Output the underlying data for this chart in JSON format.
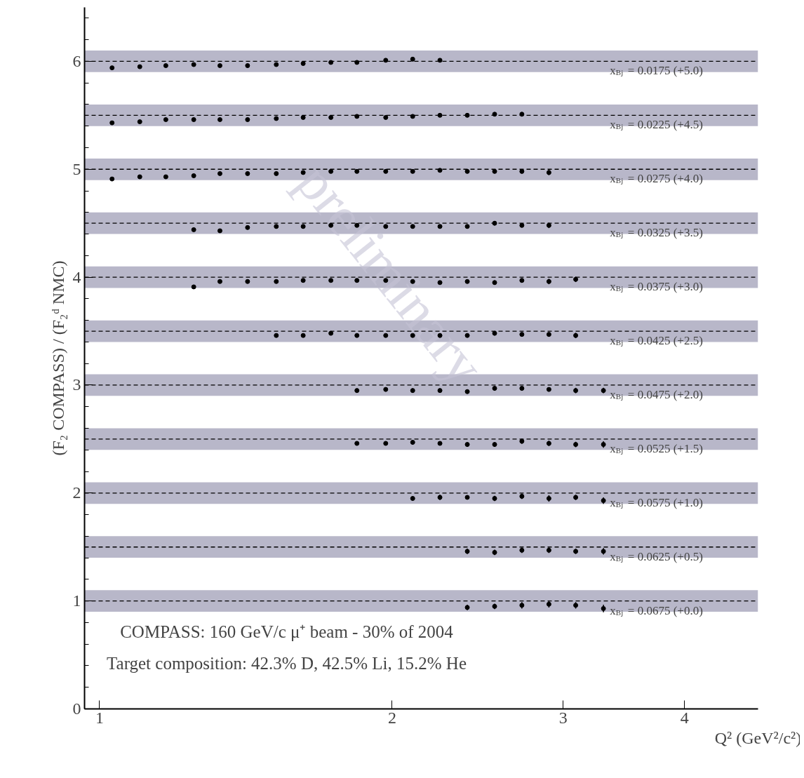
{
  "chart_data": {
    "type": "scatter",
    "xlabel": "Q² (GeV²/c²)",
    "ylabel": "(F₂ COMPASS) / (F₂ᵈ NMC)",
    "log": "x",
    "xlim": [
      0.965,
      4.76
    ],
    "xticks": [
      1,
      2,
      3,
      4
    ],
    "ylim": [
      0,
      6.5
    ],
    "yticks": [
      0,
      1,
      2,
      3,
      4,
      5,
      6
    ],
    "grid": false,
    "marker": "circle",
    "series": [
      {
        "name": "x$_{Bj}$ = 0.0175 (+5.0)",
        "color": "#000000",
        "x": [
          1.03,
          1.1,
          1.17,
          1.25,
          1.33,
          1.42,
          1.52,
          1.62,
          1.73,
          1.84,
          1.97,
          2.1,
          2.24
        ],
        "values": [
          5.94,
          5.95,
          5.96,
          5.97,
          5.96,
          5.96,
          5.97,
          5.98,
          5.99,
          5.99,
          6.01,
          6.02,
          6.01
        ]
      },
      {
        "name": "x$_{Bj}$ = 0.0225 (+4.5)",
        "color": "#000000",
        "x": [
          1.03,
          1.1,
          1.17,
          1.25,
          1.33,
          1.42,
          1.52,
          1.62,
          1.73,
          1.84,
          1.97,
          2.1,
          2.24,
          2.39,
          2.55,
          2.72
        ],
        "values": [
          5.43,
          5.44,
          5.46,
          5.46,
          5.46,
          5.46,
          5.47,
          5.48,
          5.48,
          5.49,
          5.48,
          5.49,
          5.5,
          5.5,
          5.51,
          5.51
        ],
        "errors": [
          null,
          null,
          null,
          null,
          null,
          null,
          null,
          null,
          null,
          null,
          null,
          null,
          null,
          0.015,
          0.015,
          0.02
        ]
      },
      {
        "name": "x$_{Bj}$ = 0.0275 (+4.0)",
        "color": "#000000",
        "x": [
          1.03,
          1.1,
          1.17,
          1.25,
          1.33,
          1.42,
          1.52,
          1.62,
          1.73,
          1.84,
          1.97,
          2.1,
          2.24,
          2.39,
          2.55,
          2.72,
          2.9
        ],
        "values": [
          4.91,
          4.93,
          4.93,
          4.94,
          4.96,
          4.96,
          4.96,
          4.97,
          4.98,
          4.98,
          4.98,
          4.98,
          4.99,
          4.98,
          4.98,
          4.98,
          4.97
        ],
        "errors": [
          null,
          null,
          null,
          null,
          null,
          null,
          null,
          null,
          null,
          null,
          null,
          null,
          null,
          0.015,
          0.015,
          0.02,
          0.025
        ]
      },
      {
        "name": "x$_{Bj}$ = 0.0325 (+3.5)",
        "color": "#000000",
        "x": [
          1.25,
          1.33,
          1.42,
          1.52,
          1.62,
          1.73,
          1.84,
          1.97,
          2.1,
          2.24,
          2.39,
          2.55,
          2.72,
          2.9
        ],
        "values": [
          4.44,
          4.43,
          4.46,
          4.47,
          4.47,
          4.48,
          4.48,
          4.47,
          4.47,
          4.47,
          4.47,
          4.5,
          4.48,
          4.48
        ],
        "errors": [
          null,
          null,
          null,
          null,
          null,
          0.015,
          null,
          null,
          0.015,
          0.015,
          0.015,
          0.02,
          0.02,
          0.025
        ]
      },
      {
        "name": "x$_{Bj}$ = 0.0375 (+3.0)",
        "color": "#000000",
        "x": [
          1.25,
          1.33,
          1.42,
          1.52,
          1.62,
          1.73,
          1.84,
          1.97,
          2.1,
          2.24,
          2.39,
          2.55,
          2.72,
          2.9,
          3.09
        ],
        "values": [
          3.91,
          3.96,
          3.96,
          3.96,
          3.97,
          3.97,
          3.97,
          3.97,
          3.96,
          3.95,
          3.96,
          3.95,
          3.97,
          3.96,
          3.98
        ],
        "errors": [
          null,
          null,
          null,
          null,
          null,
          null,
          0.015,
          0.015,
          0.015,
          0.015,
          0.015,
          0.02,
          0.02,
          0.025,
          0.025
        ]
      },
      {
        "name": "x$_{Bj}$ = 0.0425 (+2.5)",
        "color": "#000000",
        "x": [
          1.52,
          1.62,
          1.73,
          1.84,
          1.97,
          2.1,
          2.24,
          2.39,
          2.55,
          2.72,
          2.9,
          3.09
        ],
        "values": [
          3.46,
          3.46,
          3.48,
          3.46,
          3.46,
          3.46,
          3.46,
          3.46,
          3.48,
          3.47,
          3.47,
          3.46
        ],
        "errors": [
          null,
          null,
          0.015,
          0.015,
          0.015,
          0.015,
          0.02,
          0.015,
          0.02,
          0.02,
          0.02,
          0.025
        ]
      },
      {
        "name": "x$_{Bj}$ = 0.0475 (+2.0)",
        "color": "#000000",
        "x": [
          1.84,
          1.97,
          2.1,
          2.24,
          2.39,
          2.55,
          2.72,
          2.9,
          3.09,
          3.3
        ],
        "values": [
          2.95,
          2.96,
          2.95,
          2.95,
          2.94,
          2.97,
          2.97,
          2.96,
          2.95,
          2.95
        ],
        "errors": [
          0.02,
          0.02,
          0.02,
          0.02,
          0.02,
          0.02,
          0.02,
          0.02,
          0.025,
          0.025
        ]
      },
      {
        "name": "x$_{Bj}$ = 0.0525 (+1.5)",
        "color": "#000000",
        "x": [
          1.84,
          1.97,
          2.1,
          2.24,
          2.39,
          2.55,
          2.72,
          2.9,
          3.09,
          3.3
        ],
        "values": [
          2.46,
          2.46,
          2.47,
          2.46,
          2.45,
          2.45,
          2.48,
          2.46,
          2.45,
          2.45
        ],
        "errors": [
          0.02,
          0.02,
          0.02,
          0.02,
          0.02,
          0.02,
          0.025,
          0.025,
          0.025,
          0.03
        ]
      },
      {
        "name": "x$_{Bj}$ = 0.0575 (+1.0)",
        "color": "#000000",
        "x": [
          2.1,
          2.24,
          2.39,
          2.55,
          2.72,
          2.9,
          3.09,
          3.3
        ],
        "values": [
          1.95,
          1.96,
          1.96,
          1.95,
          1.97,
          1.95,
          1.96,
          1.93
        ],
        "errors": [
          0.02,
          0.025,
          0.02,
          0.025,
          0.025,
          0.03,
          0.025,
          0.03
        ]
      },
      {
        "name": "x$_{Bj}$ = 0.0625 (+0.5)",
        "color": "#000000",
        "x": [
          2.39,
          2.55,
          2.72,
          2.9,
          3.09,
          3.3
        ],
        "values": [
          1.46,
          1.45,
          1.47,
          1.47,
          1.46,
          1.46
        ],
        "errors": [
          0.025,
          0.025,
          0.025,
          0.025,
          0.025,
          0.03
        ]
      },
      {
        "name": "x$_{Bj}$ = 0.0675 (+0.0)",
        "color": "#000000",
        "x": [
          2.39,
          2.55,
          2.72,
          2.9,
          3.09,
          3.3
        ],
        "values": [
          0.94,
          0.95,
          0.96,
          0.97,
          0.96,
          0.93
        ],
        "errors": [
          0.025,
          0.025,
          0.03,
          0.03,
          0.03,
          0.035
        ]
      }
    ],
    "bands": [
      {
        "axis": "y",
        "from": 5.9,
        "to": 6.1,
        "color": "#b8b7c9"
      },
      {
        "axis": "y",
        "from": 5.4,
        "to": 5.6,
        "color": "#b8b7c9"
      },
      {
        "axis": "y",
        "from": 4.9,
        "to": 5.1,
        "color": "#b8b7c9"
      },
      {
        "axis": "y",
        "from": 4.4,
        "to": 4.6,
        "color": "#b8b7c9"
      },
      {
        "axis": "y",
        "from": 3.9,
        "to": 4.1,
        "color": "#b8b7c9"
      },
      {
        "axis": "y",
        "from": 3.4,
        "to": 3.6,
        "color": "#b8b7c9"
      },
      {
        "axis": "y",
        "from": 2.9,
        "to": 3.1,
        "color": "#b8b7c9"
      },
      {
        "axis": "y",
        "from": 2.4,
        "to": 2.6,
        "color": "#b8b7c9"
      },
      {
        "axis": "y",
        "from": 1.9,
        "to": 2.1,
        "color": "#b8b7c9"
      },
      {
        "axis": "y",
        "from": 1.4,
        "to": 1.6,
        "color": "#b8b7c9"
      },
      {
        "axis": "y",
        "from": 0.9,
        "to": 1.1,
        "color": "#b8b7c9"
      }
    ],
    "ref_lines": [
      {
        "axis": "y",
        "value": 6.0,
        "color": "#000000",
        "line_style": "dashed"
      },
      {
        "axis": "y",
        "value": 5.5,
        "color": "#000000",
        "line_style": "dashed"
      },
      {
        "axis": "y",
        "value": 5.0,
        "color": "#000000",
        "line_style": "dashed"
      },
      {
        "axis": "y",
        "value": 4.5,
        "color": "#000000",
        "line_style": "dashed"
      },
      {
        "axis": "y",
        "value": 4.0,
        "color": "#000000",
        "line_style": "dashed"
      },
      {
        "axis": "y",
        "value": 3.5,
        "color": "#000000",
        "line_style": "dashed"
      },
      {
        "axis": "y",
        "value": 3.0,
        "color": "#000000",
        "line_style": "dashed"
      },
      {
        "axis": "y",
        "value": 2.5,
        "color": "#000000",
        "line_style": "dashed"
      },
      {
        "axis": "y",
        "value": 2.0,
        "color": "#000000",
        "line_style": "dashed"
      },
      {
        "axis": "y",
        "value": 1.5,
        "color": "#000000",
        "line_style": "dashed"
      },
      {
        "axis": "y",
        "value": 1.0,
        "color": "#000000",
        "line_style": "dashed"
      }
    ],
    "annotations": [
      "COMPASS: 160 GeV/c μ⁺ beam - 30% of 2004",
      "Target composition: 42.3% D, 42.5% Li, 15.2% He",
      "preliminary"
    ]
  }
}
